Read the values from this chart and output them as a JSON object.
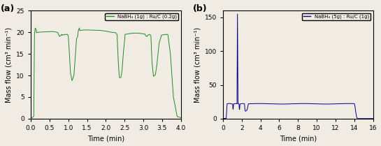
{
  "subplot_a": {
    "label": "NaBH₄ (1g) : Ru/C (0.2g)",
    "color": "#228B22",
    "xlabel": "Time (min)",
    "ylabel": "Mass flow (cm³ min⁻¹)",
    "xlim": [
      0.0,
      4.0
    ],
    "ylim": [
      0,
      25
    ],
    "yticks": [
      0,
      5,
      10,
      15,
      20,
      25
    ],
    "xticks": [
      0.0,
      0.5,
      1.0,
      1.5,
      2.0,
      2.5,
      3.0,
      3.5,
      4.0
    ],
    "tag": "(a)"
  },
  "subplot_b": {
    "label": "NaBH₄ (5g) : Ru/C (1g)",
    "color": "#00008B",
    "xlabel": "Time (min)",
    "ylabel": "Mass flow (cm³ min⁻¹)",
    "xlim": [
      0,
      16
    ],
    "ylim": [
      0,
      160
    ],
    "yticks": [
      0,
      50,
      100,
      150
    ],
    "xticks": [
      0,
      2,
      4,
      6,
      8,
      10,
      12,
      14,
      16
    ],
    "tag": "(b)"
  },
  "bg_color": "#f0ece4",
  "fig_bg": "#f0ece4"
}
